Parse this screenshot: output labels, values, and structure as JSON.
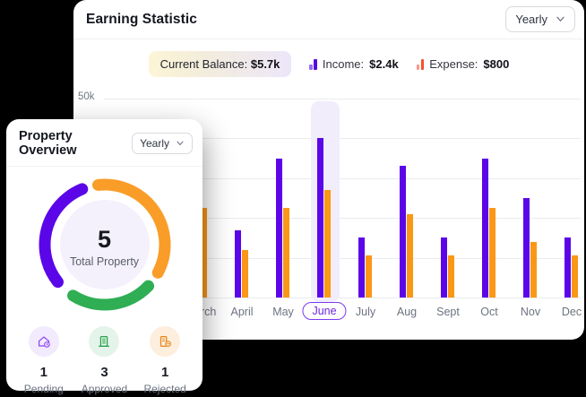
{
  "page": {
    "background_color": "#000000"
  },
  "earning_card": {
    "title": "Earning Statistic",
    "period_dropdown": {
      "value": "Yearly"
    },
    "legend": {
      "balance": {
        "label": "Current Balance:",
        "value": "$5.7k"
      },
      "income": {
        "label": "Income:",
        "value": "$2.4k",
        "icon_color": "#5508e0"
      },
      "expense": {
        "label": "Expense:",
        "value": "$800",
        "icon_color": "#f4502e"
      }
    },
    "y_axis_label": "50k"
  },
  "chart_data": {
    "type": "bar",
    "title": "Earning Statistic",
    "categories": [
      "March",
      "April",
      "May",
      "June",
      "July",
      "Aug",
      "Sept",
      "Oct",
      "Nov",
      "Dec"
    ],
    "series": [
      {
        "name": "Income",
        "color": "#5b06e8",
        "values_k": [
          null,
          17,
          35,
          40,
          15,
          33,
          15,
          35,
          25,
          15
        ]
      },
      {
        "name": "Expense",
        "color": "#fb9716",
        "values_k": [
          22.5,
          12,
          22.5,
          27,
          10.5,
          21,
          10.5,
          22.5,
          14,
          10.5
        ]
      }
    ],
    "unit": "k (thousand $)",
    "ylim_k": [
      0,
      50
    ],
    "visible_y_tick": "50k",
    "gridline_values_k": [
      50,
      40,
      30,
      20,
      10,
      0
    ],
    "highlighted_category": "June",
    "highlight_band_color": "#f2edfb",
    "legend_position": "top"
  },
  "property_card": {
    "title": "Property Overview",
    "period_dropdown": {
      "value": "Yearly"
    },
    "donut": {
      "center_value": "5",
      "center_label": "Total Property",
      "center_fill": "#f5f1fc",
      "arcs": [
        {
          "name": "pending",
          "color": "#5b06e8",
          "start_deg": 232,
          "sweep_deg": 106
        },
        {
          "name": "approved",
          "color": "#2fae54",
          "start_deg": 134,
          "sweep_deg": 78
        },
        {
          "name": "rejected",
          "color": "#f99d28",
          "start_deg": -6,
          "sweep_deg": 124
        }
      ]
    },
    "stats": [
      {
        "value": "1",
        "label": "Pending",
        "color": "#8b45f6",
        "bg": "#f2eafd"
      },
      {
        "value": "3",
        "label": "Approved",
        "color": "#27a24a",
        "bg": "#e4f4ea"
      },
      {
        "value": "1",
        "label": "Rejected",
        "color": "#e8861a",
        "bg": "#fdeedd"
      }
    ]
  }
}
